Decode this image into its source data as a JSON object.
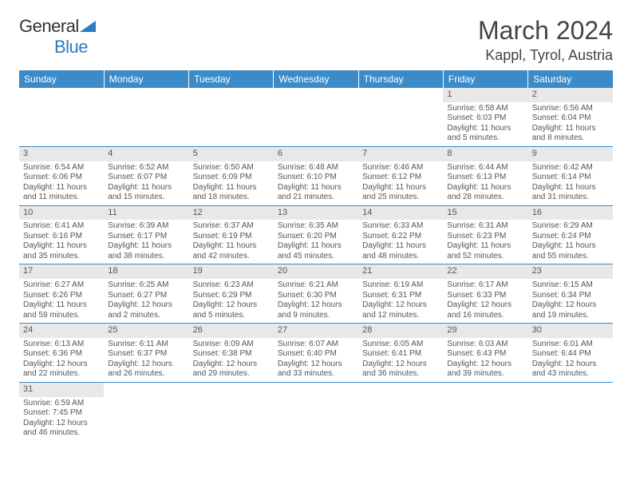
{
  "brand": {
    "part1": "General",
    "part2": "Blue"
  },
  "title": "March 2024",
  "location": "Kappl, Tyrol, Austria",
  "colors": {
    "headerBg": "#3b8bc9",
    "dayNumBg": "#e8e8e8",
    "border": "#3b8bc9"
  },
  "dayHeaders": [
    "Sunday",
    "Monday",
    "Tuesday",
    "Wednesday",
    "Thursday",
    "Friday",
    "Saturday"
  ],
  "weeks": [
    [
      null,
      null,
      null,
      null,
      null,
      {
        "n": "1",
        "sr": "Sunrise: 6:58 AM",
        "ss": "Sunset: 6:03 PM",
        "dl1": "Daylight: 11 hours",
        "dl2": "and 5 minutes."
      },
      {
        "n": "2",
        "sr": "Sunrise: 6:56 AM",
        "ss": "Sunset: 6:04 PM",
        "dl1": "Daylight: 11 hours",
        "dl2": "and 8 minutes."
      }
    ],
    [
      {
        "n": "3",
        "sr": "Sunrise: 6:54 AM",
        "ss": "Sunset: 6:06 PM",
        "dl1": "Daylight: 11 hours",
        "dl2": "and 11 minutes."
      },
      {
        "n": "4",
        "sr": "Sunrise: 6:52 AM",
        "ss": "Sunset: 6:07 PM",
        "dl1": "Daylight: 11 hours",
        "dl2": "and 15 minutes."
      },
      {
        "n": "5",
        "sr": "Sunrise: 6:50 AM",
        "ss": "Sunset: 6:09 PM",
        "dl1": "Daylight: 11 hours",
        "dl2": "and 18 minutes."
      },
      {
        "n": "6",
        "sr": "Sunrise: 6:48 AM",
        "ss": "Sunset: 6:10 PM",
        "dl1": "Daylight: 11 hours",
        "dl2": "and 21 minutes."
      },
      {
        "n": "7",
        "sr": "Sunrise: 6:46 AM",
        "ss": "Sunset: 6:12 PM",
        "dl1": "Daylight: 11 hours",
        "dl2": "and 25 minutes."
      },
      {
        "n": "8",
        "sr": "Sunrise: 6:44 AM",
        "ss": "Sunset: 6:13 PM",
        "dl1": "Daylight: 11 hours",
        "dl2": "and 28 minutes."
      },
      {
        "n": "9",
        "sr": "Sunrise: 6:42 AM",
        "ss": "Sunset: 6:14 PM",
        "dl1": "Daylight: 11 hours",
        "dl2": "and 31 minutes."
      }
    ],
    [
      {
        "n": "10",
        "sr": "Sunrise: 6:41 AM",
        "ss": "Sunset: 6:16 PM",
        "dl1": "Daylight: 11 hours",
        "dl2": "and 35 minutes."
      },
      {
        "n": "11",
        "sr": "Sunrise: 6:39 AM",
        "ss": "Sunset: 6:17 PM",
        "dl1": "Daylight: 11 hours",
        "dl2": "and 38 minutes."
      },
      {
        "n": "12",
        "sr": "Sunrise: 6:37 AM",
        "ss": "Sunset: 6:19 PM",
        "dl1": "Daylight: 11 hours",
        "dl2": "and 42 minutes."
      },
      {
        "n": "13",
        "sr": "Sunrise: 6:35 AM",
        "ss": "Sunset: 6:20 PM",
        "dl1": "Daylight: 11 hours",
        "dl2": "and 45 minutes."
      },
      {
        "n": "14",
        "sr": "Sunrise: 6:33 AM",
        "ss": "Sunset: 6:22 PM",
        "dl1": "Daylight: 11 hours",
        "dl2": "and 48 minutes."
      },
      {
        "n": "15",
        "sr": "Sunrise: 6:31 AM",
        "ss": "Sunset: 6:23 PM",
        "dl1": "Daylight: 11 hours",
        "dl2": "and 52 minutes."
      },
      {
        "n": "16",
        "sr": "Sunrise: 6:29 AM",
        "ss": "Sunset: 6:24 PM",
        "dl1": "Daylight: 11 hours",
        "dl2": "and 55 minutes."
      }
    ],
    [
      {
        "n": "17",
        "sr": "Sunrise: 6:27 AM",
        "ss": "Sunset: 6:26 PM",
        "dl1": "Daylight: 11 hours",
        "dl2": "and 59 minutes."
      },
      {
        "n": "18",
        "sr": "Sunrise: 6:25 AM",
        "ss": "Sunset: 6:27 PM",
        "dl1": "Daylight: 12 hours",
        "dl2": "and 2 minutes."
      },
      {
        "n": "19",
        "sr": "Sunrise: 6:23 AM",
        "ss": "Sunset: 6:29 PM",
        "dl1": "Daylight: 12 hours",
        "dl2": "and 5 minutes."
      },
      {
        "n": "20",
        "sr": "Sunrise: 6:21 AM",
        "ss": "Sunset: 6:30 PM",
        "dl1": "Daylight: 12 hours",
        "dl2": "and 9 minutes."
      },
      {
        "n": "21",
        "sr": "Sunrise: 6:19 AM",
        "ss": "Sunset: 6:31 PM",
        "dl1": "Daylight: 12 hours",
        "dl2": "and 12 minutes."
      },
      {
        "n": "22",
        "sr": "Sunrise: 6:17 AM",
        "ss": "Sunset: 6:33 PM",
        "dl1": "Daylight: 12 hours",
        "dl2": "and 16 minutes."
      },
      {
        "n": "23",
        "sr": "Sunrise: 6:15 AM",
        "ss": "Sunset: 6:34 PM",
        "dl1": "Daylight: 12 hours",
        "dl2": "and 19 minutes."
      }
    ],
    [
      {
        "n": "24",
        "sr": "Sunrise: 6:13 AM",
        "ss": "Sunset: 6:36 PM",
        "dl1": "Daylight: 12 hours",
        "dl2": "and 22 minutes."
      },
      {
        "n": "25",
        "sr": "Sunrise: 6:11 AM",
        "ss": "Sunset: 6:37 PM",
        "dl1": "Daylight: 12 hours",
        "dl2": "and 26 minutes."
      },
      {
        "n": "26",
        "sr": "Sunrise: 6:09 AM",
        "ss": "Sunset: 6:38 PM",
        "dl1": "Daylight: 12 hours",
        "dl2": "and 29 minutes."
      },
      {
        "n": "27",
        "sr": "Sunrise: 6:07 AM",
        "ss": "Sunset: 6:40 PM",
        "dl1": "Daylight: 12 hours",
        "dl2": "and 33 minutes."
      },
      {
        "n": "28",
        "sr": "Sunrise: 6:05 AM",
        "ss": "Sunset: 6:41 PM",
        "dl1": "Daylight: 12 hours",
        "dl2": "and 36 minutes."
      },
      {
        "n": "29",
        "sr": "Sunrise: 6:03 AM",
        "ss": "Sunset: 6:43 PM",
        "dl1": "Daylight: 12 hours",
        "dl2": "and 39 minutes."
      },
      {
        "n": "30",
        "sr": "Sunrise: 6:01 AM",
        "ss": "Sunset: 6:44 PM",
        "dl1": "Daylight: 12 hours",
        "dl2": "and 43 minutes."
      }
    ],
    [
      {
        "n": "31",
        "sr": "Sunrise: 6:59 AM",
        "ss": "Sunset: 7:45 PM",
        "dl1": "Daylight: 12 hours",
        "dl2": "and 46 minutes."
      },
      null,
      null,
      null,
      null,
      null,
      null
    ]
  ]
}
